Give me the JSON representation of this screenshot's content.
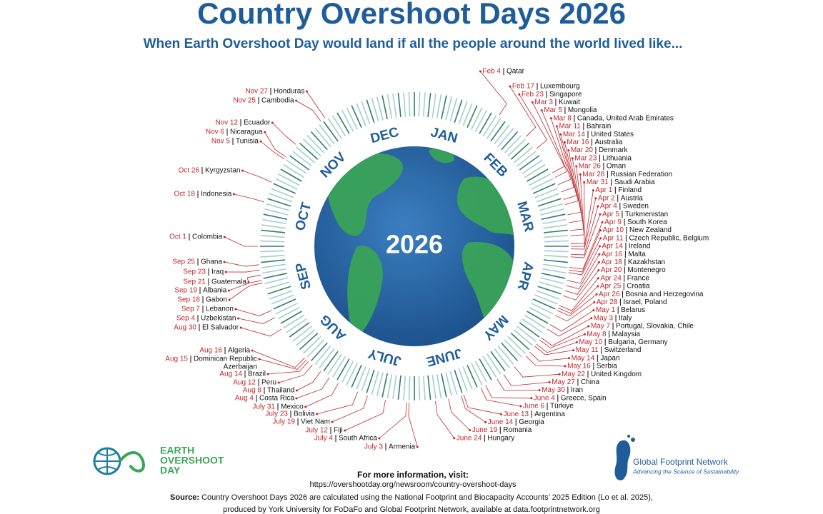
{
  "header": {
    "title": "Country Overshoot Days 2026",
    "subtitle": "When Earth Overshoot Day would land if all the people around the world lived like..."
  },
  "center_year": "2026",
  "months": [
    "JAN",
    "FEB",
    "MAR",
    "APR",
    "MAY",
    "JUNE",
    "JULY",
    "AUG",
    "SEP",
    "OCT",
    "NOV",
    "DEC"
  ],
  "right_entries": [
    {
      "date": "Feb 4",
      "country": "Qatar"
    },
    {
      "date": "Feb 17",
      "country": "Luxembourg"
    },
    {
      "date": "Feb 23",
      "country": "Singapore"
    },
    {
      "date": "Mar 3",
      "country": "Kuwait"
    },
    {
      "date": "Mar 5",
      "country": "Mongolia"
    },
    {
      "date": "Mar 8",
      "country": "Canada, United Arab Emirates"
    },
    {
      "date": "Mar 11",
      "country": "Bahrain"
    },
    {
      "date": "Mar 14",
      "country": "United States"
    },
    {
      "date": "Mar 16",
      "country": "Australia"
    },
    {
      "date": "Mar 20",
      "country": "Denmark"
    },
    {
      "date": "Mar 23",
      "country": "Lithuania"
    },
    {
      "date": "Mar 26",
      "country": "Oman"
    },
    {
      "date": "Mar 28",
      "country": "Russian Federation"
    },
    {
      "date": "Mar 31",
      "country": "Saudi Arabia"
    },
    {
      "date": "Apr 1",
      "country": "Finland"
    },
    {
      "date": "Apr 2",
      "country": "Austria"
    },
    {
      "date": "Apr 4",
      "country": "Sweden"
    },
    {
      "date": "Apr 5",
      "country": "Turkmenistan"
    },
    {
      "date": "Apr 9",
      "country": "South Korea"
    },
    {
      "date": "Apr 10",
      "country": "New Zealand"
    },
    {
      "date": "Apr 11",
      "country": "Czech Republic, Belgium"
    },
    {
      "date": "Apr 14",
      "country": "Ireland"
    },
    {
      "date": "Apr 16",
      "country": "Malta"
    },
    {
      "date": "Apr 18",
      "country": "Kazakhstan"
    },
    {
      "date": "Apr 20",
      "country": "Montenegro"
    },
    {
      "date": "Apr 24",
      "country": "France"
    },
    {
      "date": "Apr 25",
      "country": "Croatia"
    },
    {
      "date": "Apr 26",
      "country": "Bosnia and Herzegovina"
    },
    {
      "date": "Apr 28",
      "country": "Israel, Poland"
    },
    {
      "date": "May 1",
      "country": "Belarus"
    },
    {
      "date": "May 3",
      "country": "Italy"
    },
    {
      "date": "May 7",
      "country": "Portugal, Slovakia, Chile"
    },
    {
      "date": "May 8",
      "country": "Malaysia"
    },
    {
      "date": "May 10",
      "country": "Bulgaria, Germany"
    },
    {
      "date": "May 11",
      "country": "Switzerland"
    },
    {
      "date": "May 14",
      "country": "Japan"
    },
    {
      "date": "May 16",
      "country": "Serbia"
    },
    {
      "date": "May 22",
      "country": "United Kingdom"
    },
    {
      "date": "May 27",
      "country": "China"
    },
    {
      "date": "May 30",
      "country": "Iran"
    },
    {
      "date": "June 4",
      "country": "Greece, Spain"
    },
    {
      "date": "June 6",
      "country": "Türkiye"
    },
    {
      "date": "June 13",
      "country": "Argentina"
    },
    {
      "date": "June 14",
      "country": "Georgia"
    },
    {
      "date": "June 19",
      "country": "Romania"
    },
    {
      "date": "June 24",
      "country": "Hungary"
    }
  ],
  "left_entries": [
    {
      "date": "Nov 27",
      "country": "Honduras"
    },
    {
      "date": "Nov 25",
      "country": "Cambodia"
    },
    {
      "date": "Nov 12",
      "country": "Ecuador"
    },
    {
      "date": "Nov 6",
      "country": "Nicaragua"
    },
    {
      "date": "Nov 5",
      "country": "Tunisia"
    },
    {
      "date": "Oct 26",
      "country": "Kyrgyzstan"
    },
    {
      "date": "Oct 18",
      "country": "Indonesia"
    },
    {
      "date": "Oct 1",
      "country": "Colombia"
    },
    {
      "date": "Sep 25",
      "country": "Ghana"
    },
    {
      "date": "Sep 23",
      "country": "Iraq"
    },
    {
      "date": "Sep 21",
      "country": "Guatemala"
    },
    {
      "date": "Sep 19",
      "country": "Albania"
    },
    {
      "date": "Sep 18",
      "country": "Gabon"
    },
    {
      "date": "Sep 7",
      "country": "Lebanon"
    },
    {
      "date": "Sep 4",
      "country": "Uzbekistan"
    },
    {
      "date": "Aug 30",
      "country": "El Salvador"
    },
    {
      "date": "Aug 16",
      "country": "Algeria"
    },
    {
      "date": "Aug 15",
      "country": "Dominican Republic",
      "country_line2": "Azerbaijan"
    },
    {
      "date": "Aug 14",
      "country": "Brazil"
    },
    {
      "date": "Aug 12",
      "country": "Peru"
    },
    {
      "date": "Aug 8",
      "country": "Thailand"
    },
    {
      "date": "Aug 4",
      "country": "Costa Rica"
    },
    {
      "date": "July 31",
      "country": "Mexico"
    },
    {
      "date": "July 23",
      "country": "Bolivia"
    },
    {
      "date": "July 19",
      "country": "Viet Nam"
    },
    {
      "date": "July 12",
      "country": "Fiji"
    },
    {
      "date": "July 4",
      "country": "South Africa"
    },
    {
      "date": "July 3",
      "country": "Armenia"
    }
  ],
  "logos": {
    "earth_overshoot_day": [
      "EARTH",
      "OVERSHOOT",
      "DAY"
    ],
    "gfn_name": "Global Footprint Network",
    "gfn_tagline": "Advancing the Science of Sustainability"
  },
  "footer": {
    "info_heading": "For more information, visit:",
    "info_url": "https://overshootday.org/newsroom/country-overshoot-days",
    "source_label": "Source:",
    "source_line1": "Country Overshoot Days 2026 are calculated using the National Footprint and Biocapacity Accounts’ 2025 Edition (Lo et al. 2025),",
    "source_line2": "produced by York University for FoDaFo and Global Footprint Network, available at data.footprintnetwork.org"
  }
}
